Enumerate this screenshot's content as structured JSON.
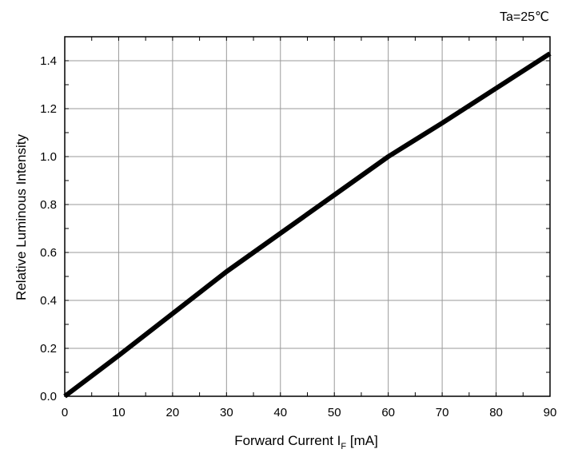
{
  "chart_data": {
    "type": "line",
    "title": "",
    "annotation": "Ta=25℃",
    "xlabel": "Forward Current I",
    "xlabel_subscript": "F",
    "xlabel_unit": " [mA]",
    "ylabel": "Relative Luminous Intensity",
    "xlim": [
      0,
      90
    ],
    "ylim": [
      0.0,
      1.5
    ],
    "xticks": [
      "0",
      "10",
      "20",
      "30",
      "40",
      "50",
      "60",
      "70",
      "80",
      "90"
    ],
    "yticks": [
      "0.0",
      "0.2",
      "0.4",
      "0.6",
      "0.8",
      "1.0",
      "1.2",
      "1.4"
    ],
    "grid": true,
    "series": [
      {
        "color": "#000000",
        "x": [
          0,
          10,
          20,
          30,
          40,
          50,
          60,
          70,
          80,
          90
        ],
        "y": [
          0.0,
          0.17,
          0.345,
          0.52,
          0.68,
          0.84,
          1.0,
          1.14,
          1.285,
          1.43
        ]
      }
    ]
  }
}
